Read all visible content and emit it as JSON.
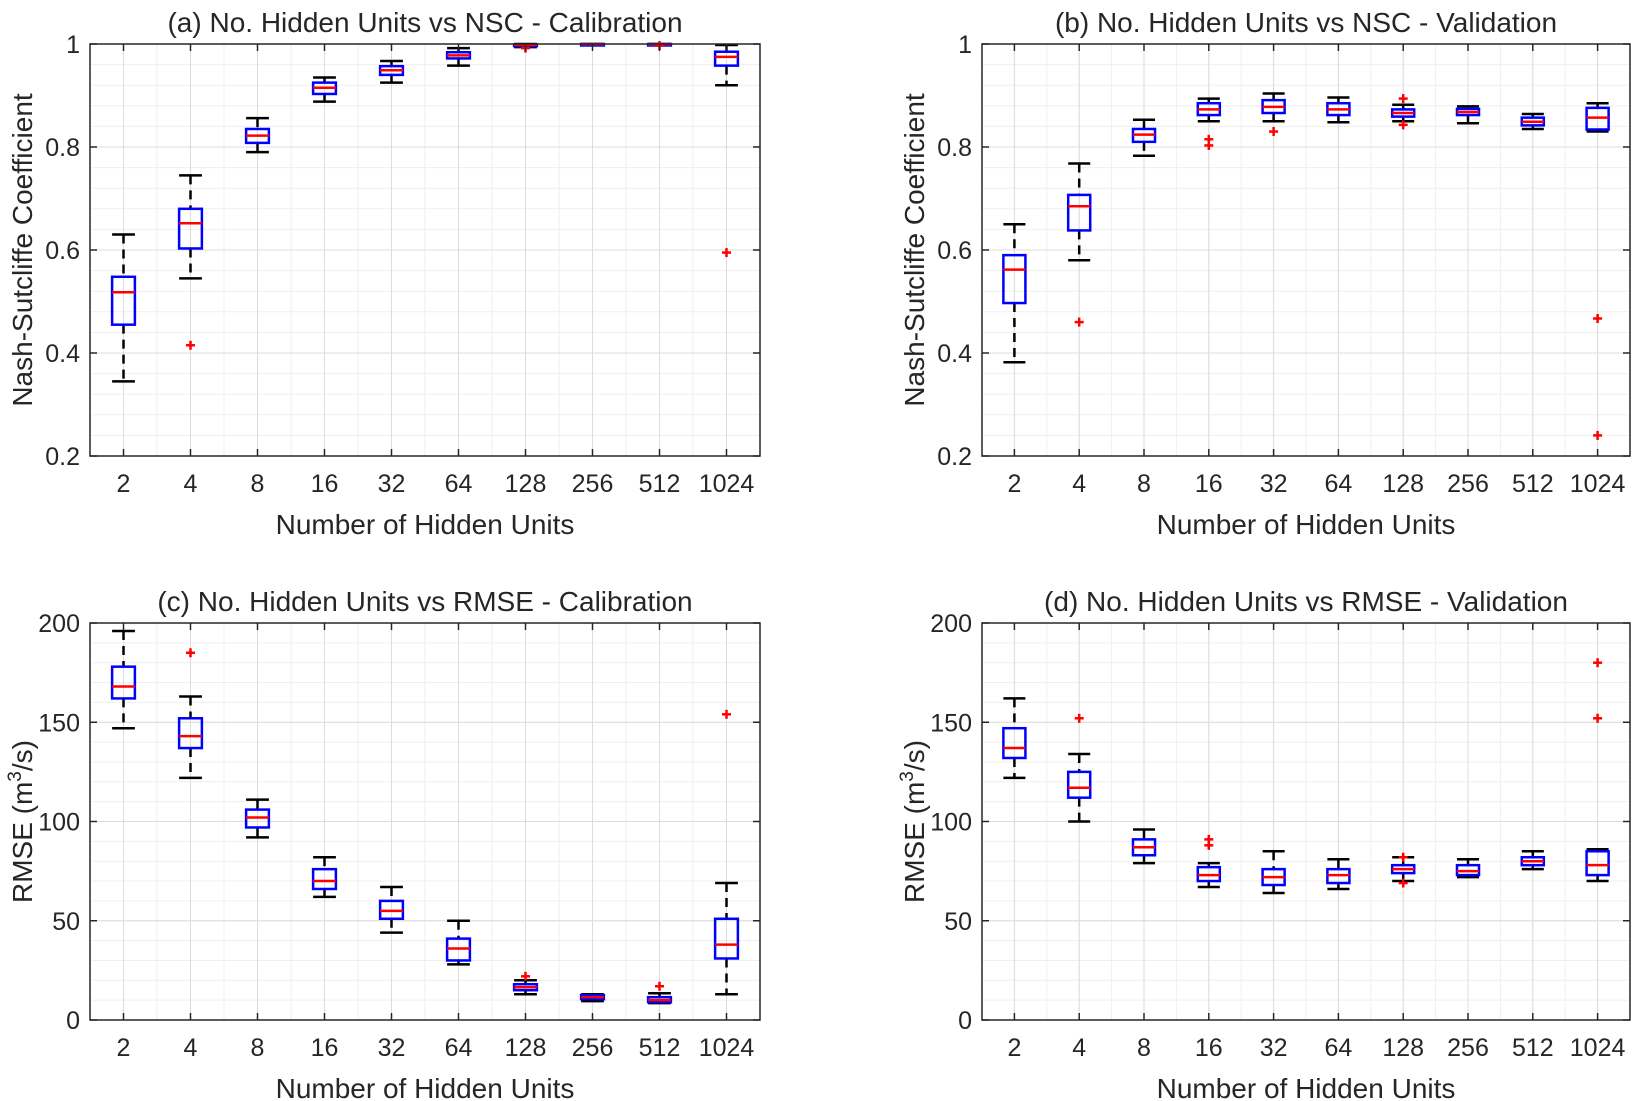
{
  "chart_data": [
    {
      "type": "box",
      "title": "(a) No. Hidden Units vs NSC - Calibration",
      "xlabel": "Number of Hidden Units",
      "ylabel": "Nash-Sutcliffe Coefficient",
      "ylabel_sup": "",
      "ylabel_post": "",
      "categories": [
        "2",
        "4",
        "8",
        "16",
        "32",
        "64",
        "128",
        "256",
        "512",
        "1024"
      ],
      "ylim": [
        0.2,
        1
      ],
      "yticks": [
        0.2,
        0.4,
        0.6,
        0.8,
        1
      ],
      "ytick_labels": [
        "0.2",
        "0.4",
        "0.6",
        "0.8",
        "1"
      ],
      "grid": true,
      "box_color": "#0000ff",
      "median_color": "#ff0000",
      "whisker_color": "#000000",
      "outlier_color": "#ff0000",
      "boxes": [
        {
          "q1": 0.455,
          "median": 0.518,
          "q3": 0.548,
          "lower": 0.345,
          "upper": 0.63,
          "outliers": []
        },
        {
          "q1": 0.603,
          "median": 0.652,
          "q3": 0.68,
          "lower": 0.545,
          "upper": 0.745,
          "outliers": [
            0.415
          ]
        },
        {
          "q1": 0.808,
          "median": 0.822,
          "q3": 0.835,
          "lower": 0.79,
          "upper": 0.856,
          "outliers": []
        },
        {
          "q1": 0.903,
          "median": 0.915,
          "q3": 0.925,
          "lower": 0.888,
          "upper": 0.935,
          "outliers": []
        },
        {
          "q1": 0.94,
          "median": 0.949,
          "q3": 0.957,
          "lower": 0.925,
          "upper": 0.967,
          "outliers": []
        },
        {
          "q1": 0.972,
          "median": 0.978,
          "q3": 0.984,
          "lower": 0.958,
          "upper": 0.992,
          "outliers": []
        },
        {
          "q1": 0.996,
          "median": 0.998,
          "q3": 0.999,
          "lower": 0.994,
          "upper": 1.0,
          "outliers": [
            0.992
          ]
        },
        {
          "q1": 0.999,
          "median": 0.9995,
          "q3": 1.0,
          "lower": 0.998,
          "upper": 1.0,
          "outliers": []
        },
        {
          "q1": 0.9985,
          "median": 0.9992,
          "q3": 1.0,
          "lower": 0.998,
          "upper": 1.0,
          "outliers": [
            0.997
          ]
        },
        {
          "q1": 0.958,
          "median": 0.975,
          "q3": 0.985,
          "lower": 0.92,
          "upper": 0.998,
          "outliers": [
            0.595
          ]
        }
      ]
    },
    {
      "type": "box",
      "title": "(b) No. Hidden Units vs NSC - Validation",
      "xlabel": "Number of Hidden Units",
      "ylabel": "Nash-Sutcliffe Coefficient",
      "ylabel_sup": "",
      "ylabel_post": "",
      "categories": [
        "2",
        "4",
        "8",
        "16",
        "32",
        "64",
        "128",
        "256",
        "512",
        "1024"
      ],
      "ylim": [
        0.2,
        1
      ],
      "yticks": [
        0.2,
        0.4,
        0.6,
        0.8,
        1
      ],
      "ytick_labels": [
        "0.2",
        "0.4",
        "0.6",
        "0.8",
        "1"
      ],
      "grid": true,
      "box_color": "#0000ff",
      "median_color": "#ff0000",
      "whisker_color": "#000000",
      "outlier_color": "#ff0000",
      "boxes": [
        {
          "q1": 0.497,
          "median": 0.562,
          "q3": 0.59,
          "lower": 0.382,
          "upper": 0.65,
          "outliers": []
        },
        {
          "q1": 0.638,
          "median": 0.685,
          "q3": 0.707,
          "lower": 0.58,
          "upper": 0.768,
          "outliers": [
            0.46
          ]
        },
        {
          "q1": 0.81,
          "median": 0.824,
          "q3": 0.835,
          "lower": 0.783,
          "upper": 0.853,
          "outliers": []
        },
        {
          "q1": 0.862,
          "median": 0.873,
          "q3": 0.885,
          "lower": 0.85,
          "upper": 0.894,
          "outliers": [
            0.815,
            0.803
          ]
        },
        {
          "q1": 0.866,
          "median": 0.878,
          "q3": 0.891,
          "lower": 0.85,
          "upper": 0.904,
          "outliers": [
            0.83
          ]
        },
        {
          "q1": 0.862,
          "median": 0.873,
          "q3": 0.885,
          "lower": 0.848,
          "upper": 0.896,
          "outliers": []
        },
        {
          "q1": 0.859,
          "median": 0.866,
          "q3": 0.873,
          "lower": 0.85,
          "upper": 0.882,
          "outliers": [
            0.894,
            0.843
          ]
        },
        {
          "q1": 0.862,
          "median": 0.868,
          "q3": 0.874,
          "lower": 0.846,
          "upper": 0.879,
          "outliers": []
        },
        {
          "q1": 0.842,
          "median": 0.849,
          "q3": 0.857,
          "lower": 0.835,
          "upper": 0.864,
          "outliers": []
        },
        {
          "q1": 0.834,
          "median": 0.857,
          "q3": 0.876,
          "lower": 0.83,
          "upper": 0.885,
          "outliers": [
            0.467,
            0.24
          ]
        }
      ]
    },
    {
      "type": "box",
      "title": "(c) No. Hidden Units vs RMSE - Calibration",
      "xlabel": "Number of Hidden Units",
      "ylabel": "RMSE (m",
      "ylabel_sup": "3",
      "ylabel_post": "/s)",
      "categories": [
        "2",
        "4",
        "8",
        "16",
        "32",
        "64",
        "128",
        "256",
        "512",
        "1024"
      ],
      "ylim": [
        0,
        200
      ],
      "yticks": [
        0,
        50,
        100,
        150,
        200
      ],
      "ytick_labels": [
        "0",
        "50",
        "100",
        "150",
        "200"
      ],
      "grid": true,
      "box_color": "#0000ff",
      "median_color": "#ff0000",
      "whisker_color": "#000000",
      "outlier_color": "#ff0000",
      "boxes": [
        {
          "q1": 162,
          "median": 168,
          "q3": 178,
          "lower": 147,
          "upper": 196,
          "outliers": []
        },
        {
          "q1": 137,
          "median": 143,
          "q3": 152,
          "lower": 122,
          "upper": 163,
          "outliers": [
            185
          ]
        },
        {
          "q1": 97,
          "median": 102,
          "q3": 106,
          "lower": 92,
          "upper": 111,
          "outliers": []
        },
        {
          "q1": 66,
          "median": 70,
          "q3": 76,
          "lower": 62,
          "upper": 82,
          "outliers": []
        },
        {
          "q1": 51,
          "median": 55,
          "q3": 60,
          "lower": 44,
          "upper": 67,
          "outliers": []
        },
        {
          "q1": 30,
          "median": 36,
          "q3": 41,
          "lower": 28,
          "upper": 50,
          "outliers": []
        },
        {
          "q1": 15,
          "median": 16.5,
          "q3": 18,
          "lower": 13,
          "upper": 20,
          "outliers": [
            22
          ]
        },
        {
          "q1": 10.5,
          "median": 11.5,
          "q3": 12.5,
          "lower": 9.5,
          "upper": 13,
          "outliers": []
        },
        {
          "q1": 9,
          "median": 10,
          "q3": 11.5,
          "lower": 8.5,
          "upper": 13.5,
          "outliers": [
            17
          ]
        },
        {
          "q1": 31,
          "median": 38,
          "q3": 51,
          "lower": 13,
          "upper": 69,
          "outliers": [
            154
          ]
        }
      ]
    },
    {
      "type": "box",
      "title": "(d) No. Hidden Units vs RMSE - Validation",
      "xlabel": "Number of Hidden Units",
      "ylabel": "RMSE (m",
      "ylabel_sup": "3",
      "ylabel_post": "/s)",
      "categories": [
        "2",
        "4",
        "8",
        "16",
        "32",
        "64",
        "128",
        "256",
        "512",
        "1024"
      ],
      "ylim": [
        0,
        200
      ],
      "yticks": [
        0,
        50,
        100,
        150,
        200
      ],
      "ytick_labels": [
        "0",
        "50",
        "100",
        "150",
        "200"
      ],
      "grid": true,
      "box_color": "#0000ff",
      "median_color": "#ff0000",
      "whisker_color": "#000000",
      "outlier_color": "#ff0000",
      "boxes": [
        {
          "q1": 132,
          "median": 137,
          "q3": 147,
          "lower": 122,
          "upper": 162,
          "outliers": []
        },
        {
          "q1": 112,
          "median": 117,
          "q3": 125,
          "lower": 100,
          "upper": 134,
          "outliers": [
            152
          ]
        },
        {
          "q1": 83,
          "median": 87,
          "q3": 91,
          "lower": 79,
          "upper": 96,
          "outliers": []
        },
        {
          "q1": 70,
          "median": 73,
          "q3": 77,
          "lower": 67,
          "upper": 79,
          "outliers": [
            91,
            88
          ]
        },
        {
          "q1": 68,
          "median": 72,
          "q3": 76,
          "lower": 64,
          "upper": 85,
          "outliers": []
        },
        {
          "q1": 69,
          "median": 73,
          "q3": 76,
          "lower": 66,
          "upper": 81,
          "outliers": []
        },
        {
          "q1": 74,
          "median": 76,
          "q3": 78,
          "lower": 70,
          "upper": 82,
          "outliers": [
            82,
            69
          ]
        },
        {
          "q1": 73,
          "median": 75,
          "q3": 78,
          "lower": 72,
          "upper": 81,
          "outliers": []
        },
        {
          "q1": 78,
          "median": 80,
          "q3": 82,
          "lower": 76,
          "upper": 85,
          "outliers": []
        },
        {
          "q1": 73,
          "median": 78,
          "q3": 85,
          "lower": 70,
          "upper": 86,
          "outliers": [
            180,
            152
          ]
        }
      ]
    }
  ]
}
